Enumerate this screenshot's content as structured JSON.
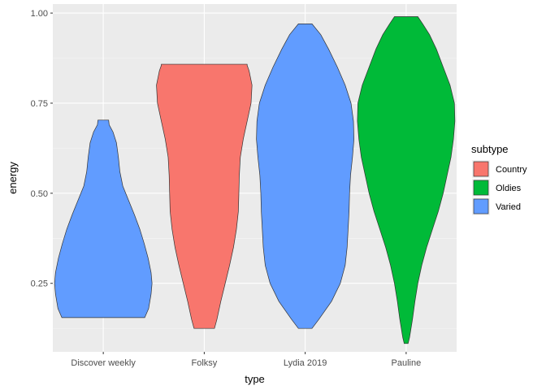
{
  "chart_data": {
    "type": "violin",
    "xlabel": "type",
    "ylabel": "energy",
    "categories": [
      "Discover weekly",
      "Folksy",
      "Lydia 2019",
      "Pauline"
    ],
    "ylim": [
      0.06,
      1.025
    ],
    "yticks": [
      0.25,
      0.5,
      0.75,
      1.0
    ],
    "ytick_labels": [
      "0.25",
      "0.50",
      "0.75",
      "1.00"
    ],
    "grid": true,
    "legend": {
      "title": "subtype",
      "position": "right",
      "items": [
        {
          "label": "Country",
          "color": "#F8766D"
        },
        {
          "label": "Oldies",
          "color": "#00BA38"
        },
        {
          "label": "Varied",
          "color": "#619CFF"
        }
      ]
    },
    "violins": [
      {
        "category": "Discover weekly",
        "subtype": "Varied",
        "color": "#619CFF",
        "profile": [
          [
            0.155,
            0.85
          ],
          [
            0.18,
            0.93
          ],
          [
            0.22,
            0.98
          ],
          [
            0.25,
            1.0
          ],
          [
            0.28,
            0.98
          ],
          [
            0.32,
            0.92
          ],
          [
            0.36,
            0.84
          ],
          [
            0.4,
            0.75
          ],
          [
            0.44,
            0.64
          ],
          [
            0.48,
            0.52
          ],
          [
            0.52,
            0.4
          ],
          [
            0.56,
            0.34
          ],
          [
            0.6,
            0.31
          ],
          [
            0.64,
            0.27
          ],
          [
            0.67,
            0.2
          ],
          [
            0.69,
            0.12
          ],
          [
            0.703,
            0.11
          ]
        ]
      },
      {
        "category": "Folksy",
        "subtype": "Country",
        "color": "#F8766D",
        "profile": [
          [
            0.125,
            0.21
          ],
          [
            0.15,
            0.26
          ],
          [
            0.2,
            0.34
          ],
          [
            0.25,
            0.43
          ],
          [
            0.3,
            0.52
          ],
          [
            0.35,
            0.6
          ],
          [
            0.4,
            0.66
          ],
          [
            0.45,
            0.7
          ],
          [
            0.5,
            0.71
          ],
          [
            0.55,
            0.72
          ],
          [
            0.6,
            0.74
          ],
          [
            0.65,
            0.8
          ],
          [
            0.7,
            0.88
          ],
          [
            0.75,
            0.96
          ],
          [
            0.8,
            0.98
          ],
          [
            0.84,
            0.92
          ],
          [
            0.855,
            0.88
          ],
          [
            0.858,
            0.88
          ]
        ]
      },
      {
        "category": "Lydia 2019",
        "subtype": "Varied",
        "color": "#619CFF",
        "profile": [
          [
            0.125,
            0.14
          ],
          [
            0.15,
            0.28
          ],
          [
            0.2,
            0.54
          ],
          [
            0.25,
            0.72
          ],
          [
            0.3,
            0.82
          ],
          [
            0.35,
            0.86
          ],
          [
            0.4,
            0.88
          ],
          [
            0.45,
            0.9
          ],
          [
            0.5,
            0.91
          ],
          [
            0.55,
            0.93
          ],
          [
            0.6,
            0.97
          ],
          [
            0.65,
            1.0
          ],
          [
            0.7,
            0.99
          ],
          [
            0.75,
            0.94
          ],
          [
            0.8,
            0.82
          ],
          [
            0.85,
            0.66
          ],
          [
            0.9,
            0.48
          ],
          [
            0.94,
            0.32
          ],
          [
            0.97,
            0.14
          ]
        ]
      },
      {
        "category": "Pauline",
        "subtype": "Oldies",
        "color": "#00BA38",
        "profile": [
          [
            0.083,
            0.04
          ],
          [
            0.1,
            0.07
          ],
          [
            0.15,
            0.13
          ],
          [
            0.2,
            0.18
          ],
          [
            0.25,
            0.24
          ],
          [
            0.3,
            0.32
          ],
          [
            0.35,
            0.42
          ],
          [
            0.4,
            0.54
          ],
          [
            0.45,
            0.66
          ],
          [
            0.5,
            0.76
          ],
          [
            0.55,
            0.84
          ],
          [
            0.6,
            0.92
          ],
          [
            0.65,
            0.97
          ],
          [
            0.7,
            1.0
          ],
          [
            0.75,
            0.99
          ],
          [
            0.8,
            0.9
          ],
          [
            0.85,
            0.76
          ],
          [
            0.9,
            0.62
          ],
          [
            0.94,
            0.48
          ],
          [
            0.97,
            0.34
          ],
          [
            0.99,
            0.24
          ]
        ]
      }
    ]
  }
}
